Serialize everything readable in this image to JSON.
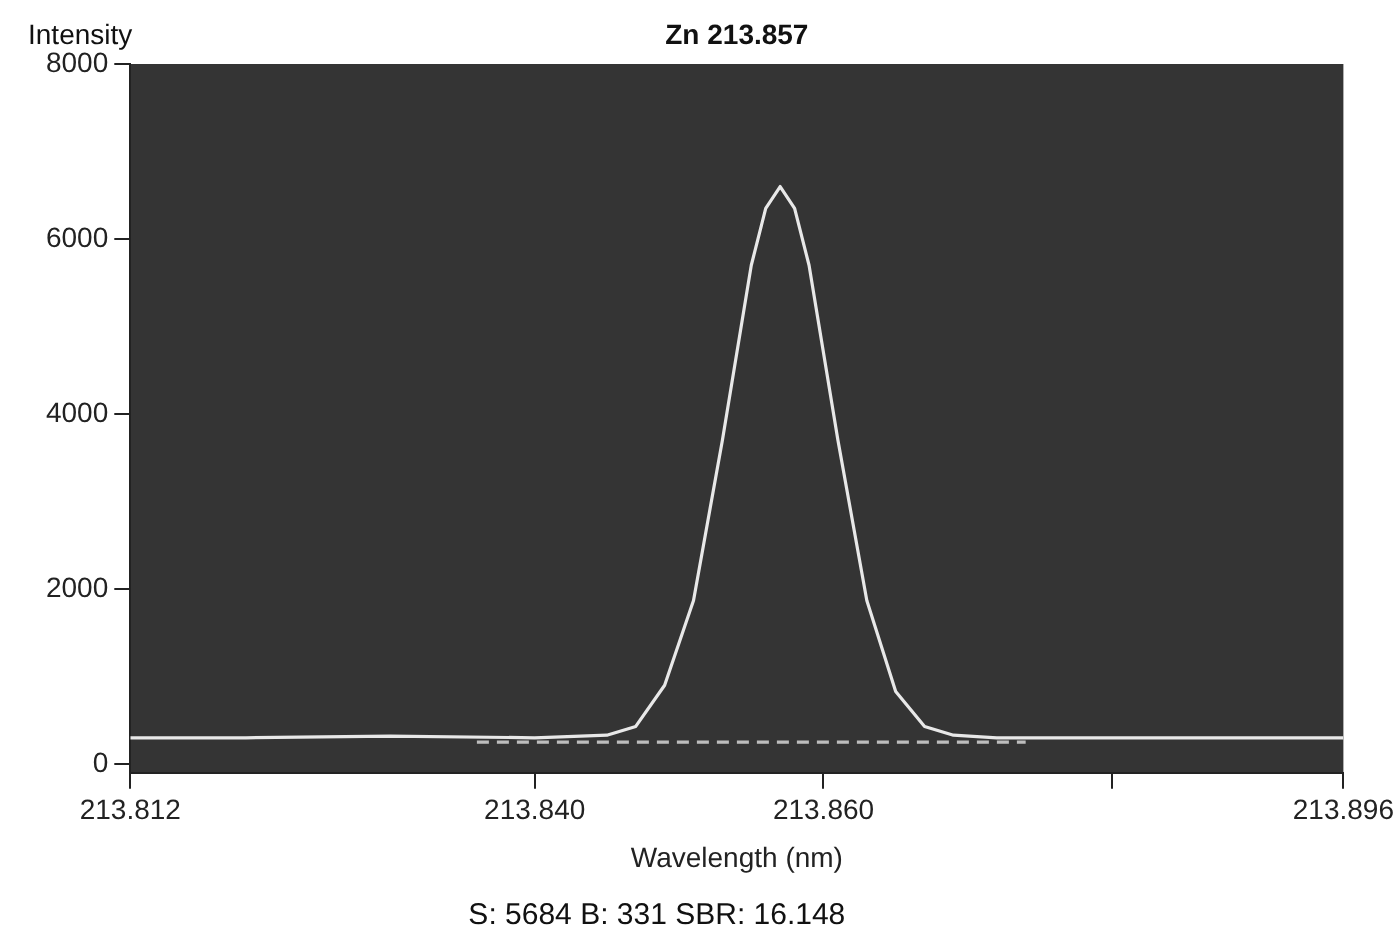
{
  "chart_data": {
    "type": "line",
    "title": "Zn 213.857",
    "xlabel": "Wavelength (nm)",
    "ylabel": "Intensity",
    "annotations": [
      "S: 5684 B: 331 SBR: 16.148"
    ],
    "xlim": [
      213.812,
      213.896
    ],
    "xticks": [
      213.812,
      {
        "value": 213.84,
        "label": "213.840"
      },
      {
        "value": 213.86,
        "label": "213.860"
      },
      {
        "value": 213.88,
        "label": null
      },
      213.896
    ],
    "ylim": [
      -100,
      8000
    ],
    "yticks": [
      0,
      2000,
      4000,
      6000,
      8000
    ],
    "grid": false,
    "legend": false,
    "marker": "none",
    "series": [
      {
        "color": "#e8e8e8",
        "line_style": "solid",
        "x": [
          213.812,
          213.82,
          213.83,
          213.84,
          213.845,
          213.847,
          213.849,
          213.851,
          213.853,
          213.855,
          213.856,
          213.857,
          213.858,
          213.859,
          213.861,
          213.863,
          213.865,
          213.867,
          213.869,
          213.872,
          213.88,
          213.896
        ],
        "values": [
          300,
          300,
          320,
          300,
          330,
          430,
          900,
          1870,
          3700,
          5700,
          6350,
          6600,
          6350,
          5700,
          3700,
          1870,
          830,
          430,
          330,
          300,
          300,
          300
        ]
      },
      {
        "color": "#bdbdbd",
        "line_style": "dashed",
        "x": [
          213.836,
          213.874
        ],
        "values": [
          250,
          250
        ]
      }
    ]
  }
}
